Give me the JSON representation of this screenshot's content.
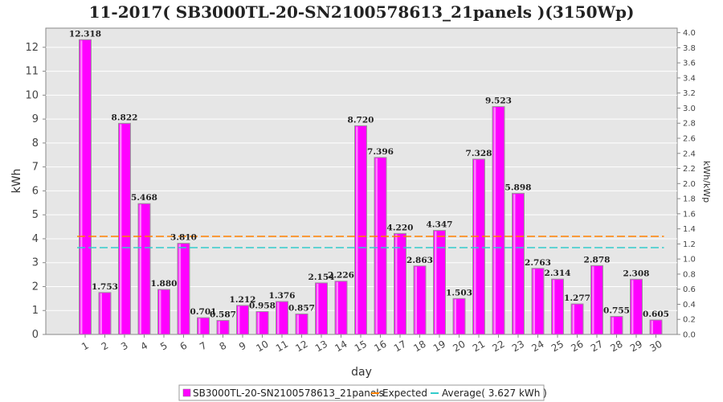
{
  "chart_data": {
    "type": "bar",
    "title": "11-2017( SB3000TL-20-SN2100578613_21panels )(3150Wp)",
    "xlabel": "day",
    "ylabel": "kWh",
    "ylabel_right": "kWh/kWp",
    "ylim": [
      0,
      12.8
    ],
    "ylim_right": [
      0,
      4.06
    ],
    "yticks": [
      0,
      1,
      2,
      3,
      4,
      5,
      6,
      7,
      8,
      9,
      10,
      11,
      12
    ],
    "yticks_right": [
      "0.0",
      "0.2",
      "0.4",
      "0.6",
      "0.8",
      "1.0",
      "1.2",
      "1.4",
      "1.6",
      "1.8",
      "2.0",
      "2.2",
      "2.4",
      "2.6",
      "2.8",
      "3.0",
      "3.2",
      "3.4",
      "3.6",
      "3.8",
      "4.0"
    ],
    "categories": [
      "1",
      "2",
      "3",
      "4",
      "5",
      "6",
      "7",
      "8",
      "9",
      "10",
      "11",
      "12",
      "13",
      "14",
      "15",
      "16",
      "17",
      "18",
      "19",
      "20",
      "21",
      "22",
      "23",
      "24",
      "25",
      "26",
      "27",
      "28",
      "29",
      "30"
    ],
    "series": [
      {
        "name": "SB3000TL-20-SN2100578613_21panels",
        "color": "#ff00ff",
        "values": [
          12.318,
          1.753,
          8.822,
          5.468,
          1.88,
          3.81,
          0.701,
          0.587,
          1.212,
          0.958,
          1.376,
          0.857,
          2.154,
          2.226,
          8.72,
          7.396,
          4.22,
          2.863,
          4.347,
          1.503,
          7.328,
          9.523,
          5.898,
          2.763,
          2.314,
          1.277,
          2.878,
          0.755,
          2.308,
          0.605
        ],
        "labels": [
          "12.318",
          "1.753",
          "8.822",
          "5.468",
          "1.880",
          "3.810",
          "0.701",
          "0.587",
          "1.212",
          "0.958",
          "1.376",
          "0.857",
          "2.154",
          "2.226",
          "8.720",
          "7.396",
          "4.220",
          "2.863",
          "4.347",
          "1.503",
          "7.328",
          "9.523",
          "5.898",
          "2.763",
          "2.314",
          "1.277",
          "2.878",
          "0.755",
          "2.308",
          "0.605"
        ]
      }
    ],
    "lines": [
      {
        "name": "Expected",
        "color": "#ff8000",
        "value": 4.1
      },
      {
        "name": "Average( 3.627 kWh )",
        "color": "#33cccc",
        "value": 3.627
      }
    ],
    "grid": true,
    "legend_position": "bottom"
  }
}
